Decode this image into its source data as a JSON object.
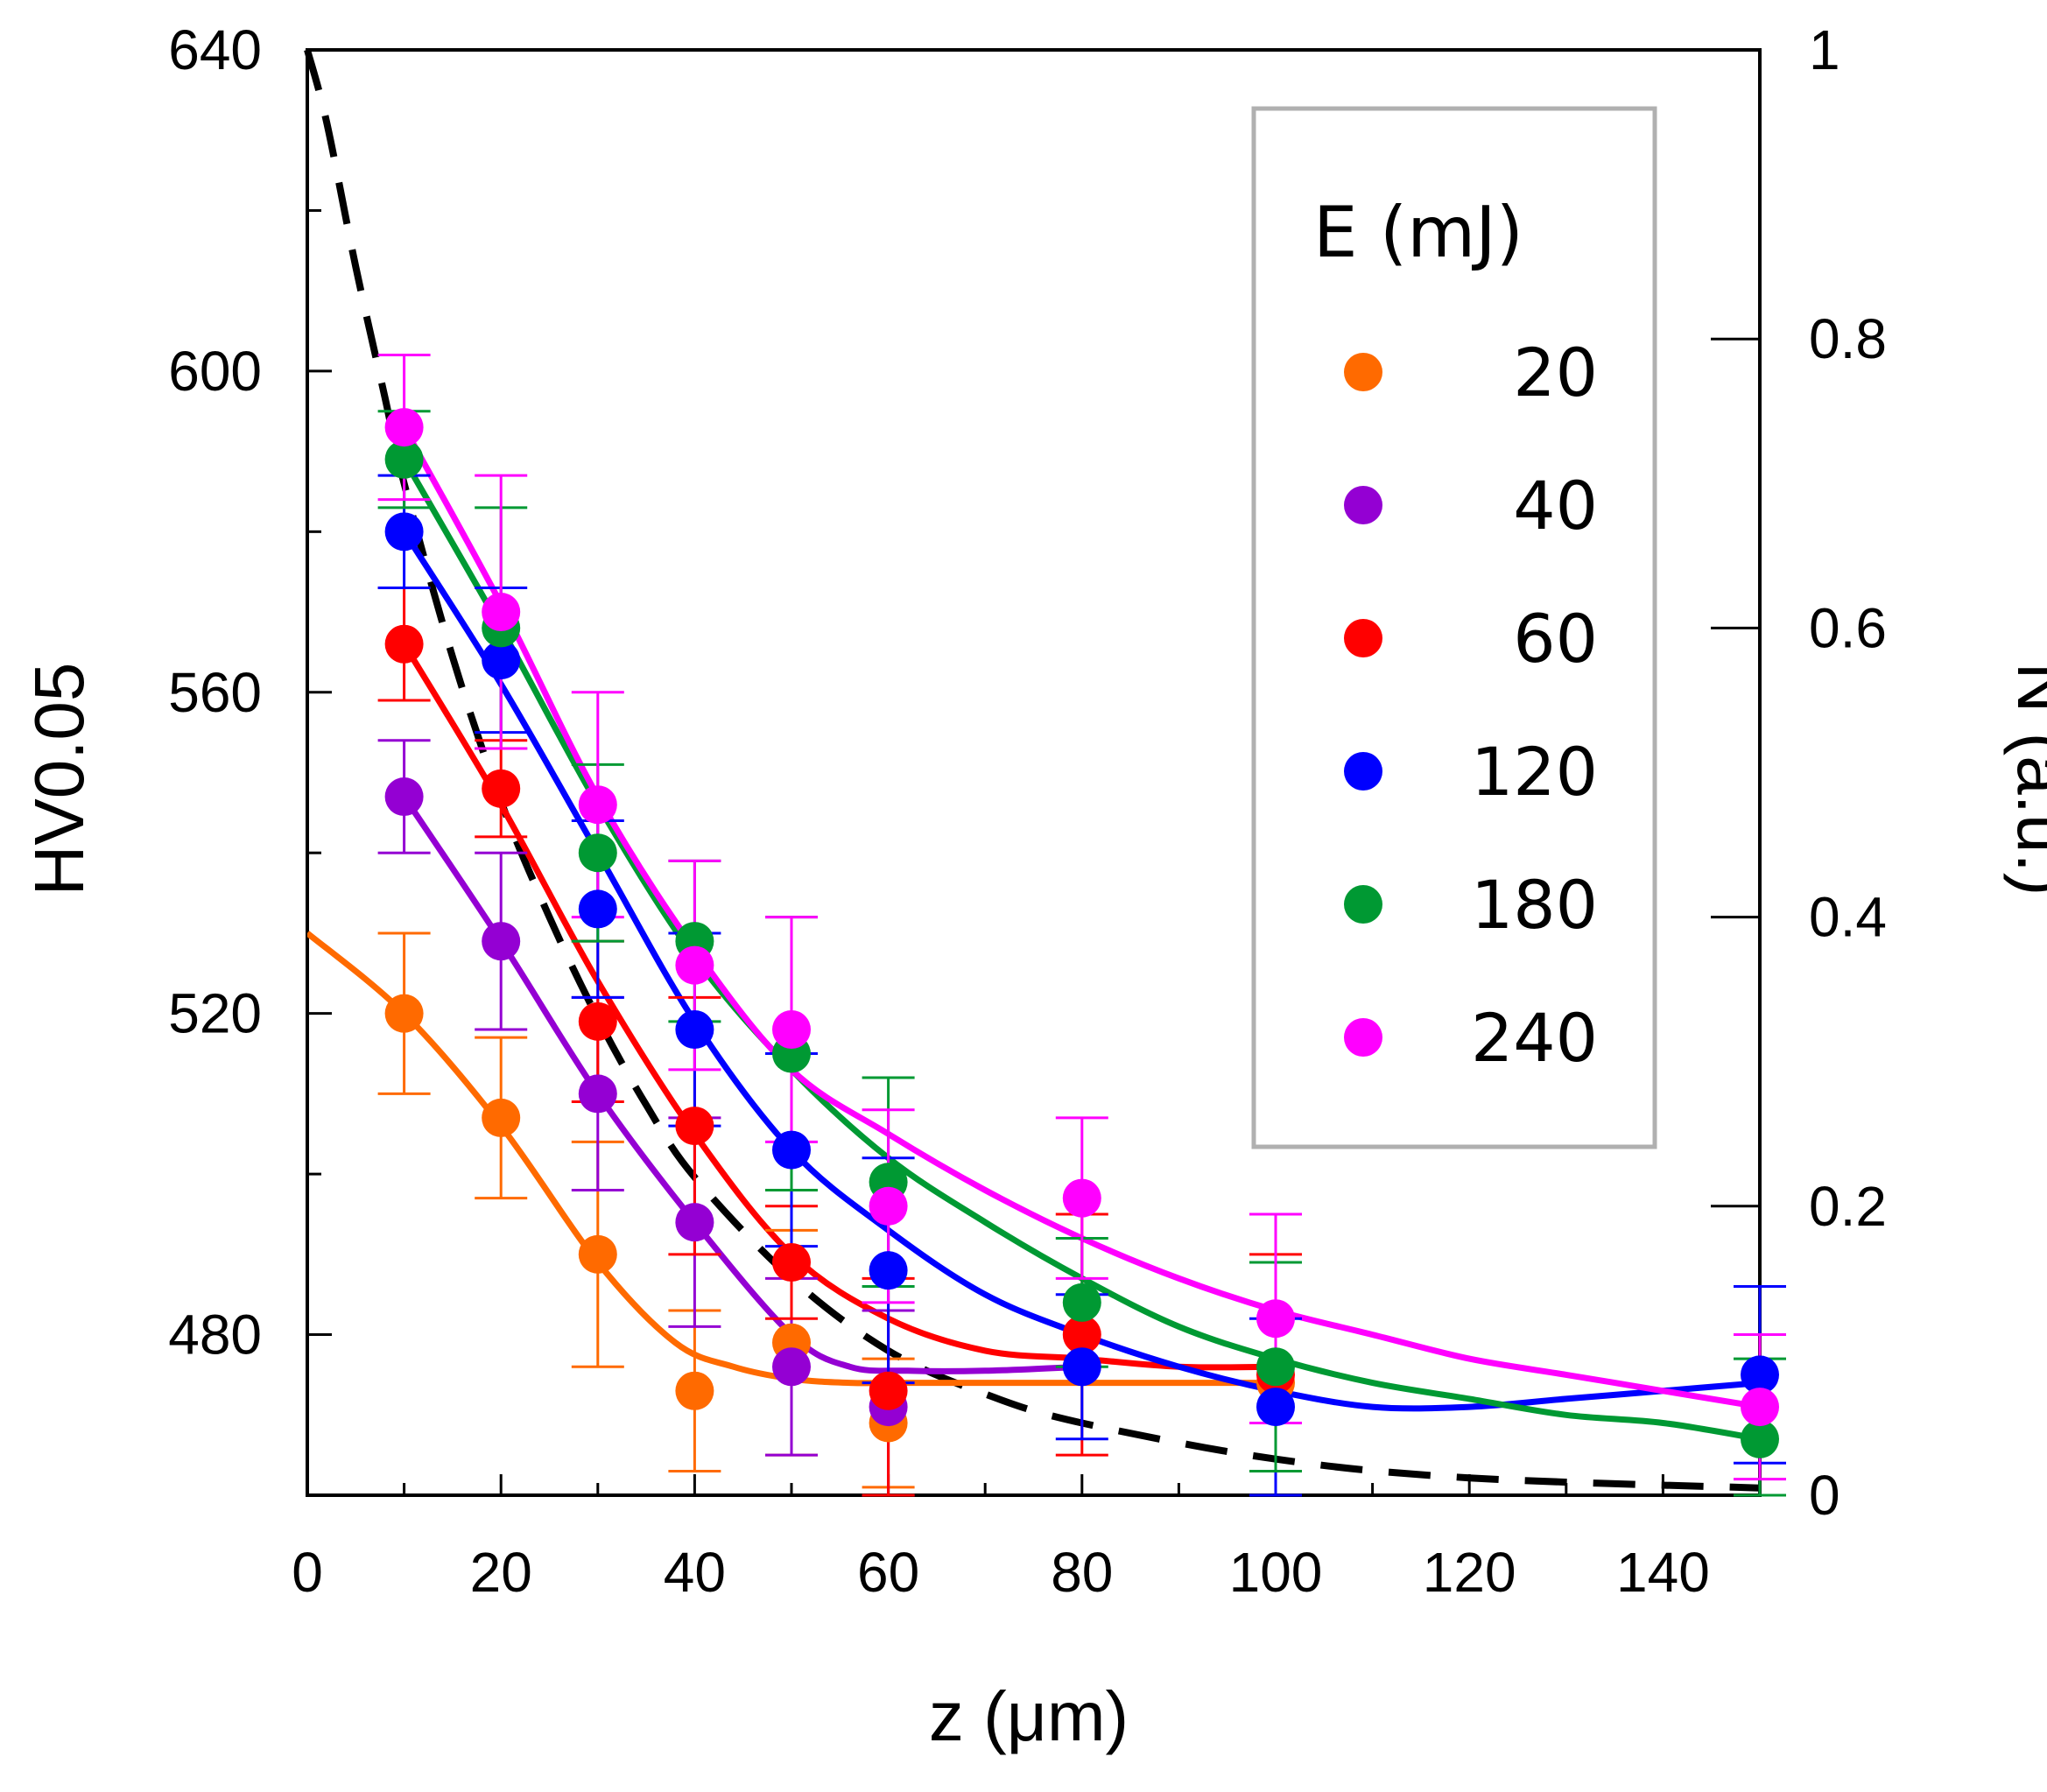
{
  "chart_data": {
    "type": "scatter",
    "title": "",
    "xlabel": "z (μm)",
    "ylabel": "HV0.05",
    "y2label": "N (a.u.)",
    "xlim": [
      0,
      150
    ],
    "ylim": [
      460,
      640
    ],
    "y2lim": [
      0,
      1
    ],
    "x_ticks": [
      "0",
      "20",
      "40",
      "60",
      "80",
      "100",
      "120",
      "140"
    ],
    "y_ticks": [
      "480",
      "520",
      "560",
      "600",
      "640"
    ],
    "y2_ticks": [
      "0",
      "0.2",
      "0.4",
      "0.6",
      "0.8",
      "1"
    ],
    "grid": false,
    "legend": {
      "title": "E (mJ)",
      "position": "top-right"
    },
    "series": [
      {
        "name": "20",
        "color": "#FF6A00",
        "x": [
          10,
          20,
          30,
          40,
          50,
          60,
          100
        ],
        "y": [
          520,
          507,
          490,
          473,
          479,
          469,
          474
        ],
        "err": [
          10,
          10,
          14,
          10,
          14,
          8,
          0
        ],
        "fit_x": [
          0,
          10,
          20,
          30,
          38,
          44,
          50,
          56,
          62,
          80,
          100
        ],
        "fit_y": [
          530,
          520,
          506,
          489,
          479,
          476,
          474.5,
          474,
          474,
          474,
          474
        ]
      },
      {
        "name": "40",
        "color": "#9400D3",
        "x": [
          10,
          20,
          30,
          40,
          50,
          60
        ],
        "y": [
          547,
          529,
          510,
          494,
          476,
          471
        ],
        "err": [
          7,
          11,
          12,
          13,
          11,
          12
        ],
        "fit_x": [
          10,
          20,
          30,
          40,
          50,
          56,
          62,
          70,
          80
        ],
        "fit_y": [
          547,
          529,
          510,
          494,
          480,
          476,
          475.5,
          475.5,
          476
        ]
      },
      {
        "name": "60",
        "color": "#FF0000",
        "x": [
          10,
          20,
          30,
          40,
          50,
          60,
          80,
          100
        ],
        "y": [
          566,
          548,
          519,
          506,
          489,
          473,
          480,
          475
        ],
        "err": [
          7,
          6,
          10,
          16,
          7,
          14,
          15,
          15
        ],
        "fit_x": [
          10,
          20,
          30,
          40,
          50,
          60,
          70,
          80,
          90,
          100
        ],
        "fit_y": [
          566,
          546,
          524,
          505,
          490,
          482,
          478,
          477,
          476,
          476
        ]
      },
      {
        "name": "120",
        "color": "#0000FF",
        "x": [
          10,
          20,
          30,
          40,
          50,
          60,
          80,
          100,
          150
        ],
        "y": [
          580,
          564,
          533,
          518,
          503,
          488,
          476,
          471,
          475
        ],
        "err": [
          7,
          9,
          11,
          12,
          12,
          14,
          9,
          11,
          11
        ],
        "fit_x": [
          10,
          20,
          30,
          40,
          50,
          60,
          70,
          80,
          90,
          100,
          110,
          120,
          130,
          140,
          150
        ],
        "fit_y": [
          580,
          561,
          540,
          519,
          503,
          493,
          485,
          480,
          476,
          473,
          471,
          471,
          472,
          473,
          474
        ]
      },
      {
        "name": "180",
        "color": "#009933",
        "x": [
          10,
          20,
          30,
          40,
          50,
          60,
          80,
          100,
          150
        ],
        "y": [
          589,
          568,
          540,
          529,
          515,
          499,
          484,
          476,
          467
        ],
        "err": [
          6,
          15,
          11,
          10,
          17,
          13,
          8,
          13,
          10
        ],
        "fit_x": [
          10,
          20,
          30,
          40,
          50,
          60,
          70,
          80,
          90,
          100,
          110,
          120,
          130,
          140,
          150
        ],
        "fit_y": [
          589,
          568,
          546,
          527,
          513,
          502,
          494,
          487,
          481,
          477,
          474,
          472,
          470,
          469,
          467
        ]
      },
      {
        "name": "240",
        "color": "#FF00FF",
        "x": [
          10,
          20,
          30,
          40,
          50,
          60,
          80,
          100,
          150
        ],
        "y": [
          593,
          570,
          546,
          526,
          518,
          496,
          497,
          482,
          471
        ],
        "err": [
          9,
          17,
          14,
          13,
          14,
          12,
          10,
          13,
          9
        ],
        "fit_x": [
          10,
          20,
          30,
          40,
          50,
          60,
          70,
          80,
          90,
          100,
          110,
          120,
          130,
          140,
          150
        ],
        "fit_y": [
          593,
          571,
          547,
          528,
          513,
          505,
          498,
          492,
          487,
          483,
          480,
          477,
          475,
          473,
          471
        ]
      }
    ],
    "n_profile": {
      "name": "N",
      "axis": "right",
      "color": "#000000",
      "style": "dashed",
      "x": [
        0,
        2,
        5,
        8,
        10,
        15,
        20,
        25,
        30,
        35,
        40,
        50,
        60,
        70,
        80,
        100,
        120,
        150
      ],
      "y": [
        1.0,
        0.95,
        0.85,
        0.76,
        0.7,
        0.58,
        0.48,
        0.4,
        0.33,
        0.27,
        0.22,
        0.15,
        0.1,
        0.07,
        0.05,
        0.025,
        0.012,
        0.005
      ]
    }
  }
}
